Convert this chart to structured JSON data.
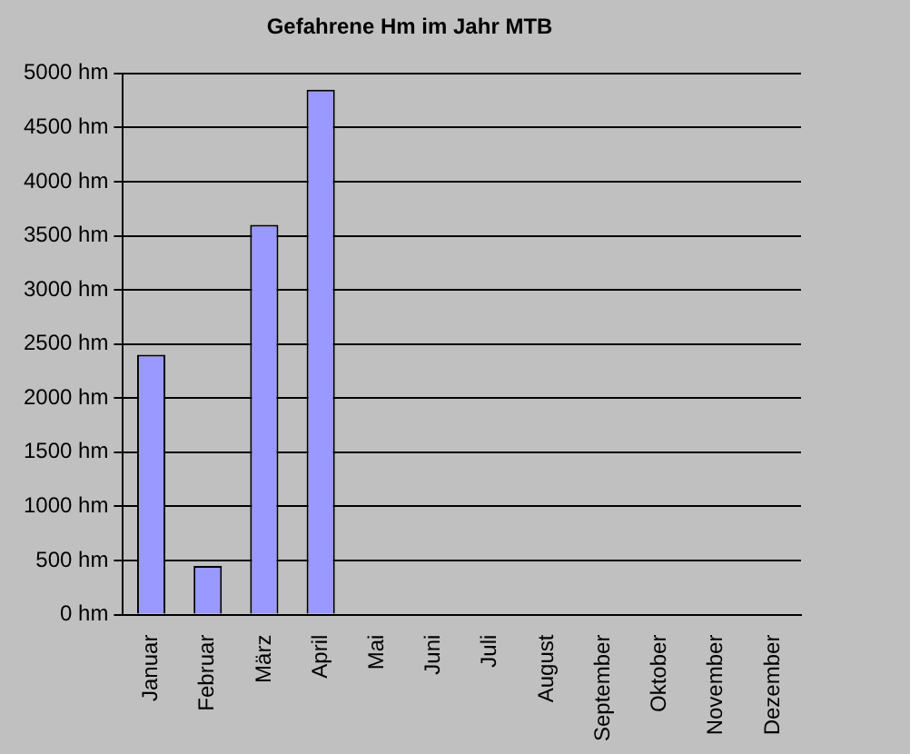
{
  "chart_data": {
    "type": "bar",
    "title": "Gefahrene Hm im Jahr MTB",
    "categories": [
      "Januar",
      "Februar",
      "März",
      "April",
      "Mai",
      "Juni",
      "Juli",
      "August",
      "September",
      "Oktober",
      "November",
      "Dezember"
    ],
    "values": [
      2400,
      450,
      3600,
      4850,
      0,
      0,
      0,
      0,
      0,
      0,
      0,
      0
    ],
    "color": "#9999ff",
    "ylim": [
      0,
      5000
    ],
    "yticks": [
      {
        "value": 0,
        "label": "0 hm"
      },
      {
        "value": 500,
        "label": "500 hm"
      },
      {
        "value": 1000,
        "label": "1000 hm"
      },
      {
        "value": 1500,
        "label": "1500 hm"
      },
      {
        "value": 2000,
        "label": "2000 hm"
      },
      {
        "value": 2500,
        "label": "2500 hm"
      },
      {
        "value": 3000,
        "label": "3000 hm"
      },
      {
        "value": 3500,
        "label": "3500 hm"
      },
      {
        "value": 4000,
        "label": "4000 hm"
      },
      {
        "value": 4500,
        "label": "4500 hm"
      },
      {
        "value": 5000,
        "label": "5000 hm"
      }
    ],
    "grid": "y"
  }
}
